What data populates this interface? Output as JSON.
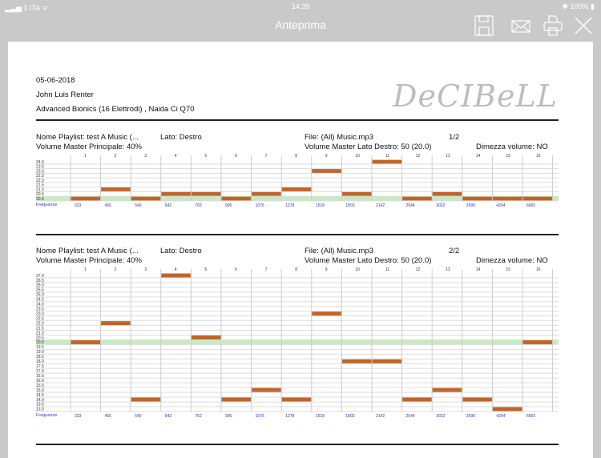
{
  "status_bar": {
    "carrier": "3 ITA",
    "time": "14:39",
    "battery": "100%"
  },
  "nav": {
    "title": "Anteprima",
    "icons": [
      "save-icon",
      "mail-icon",
      "print-icon",
      "close-icon"
    ]
  },
  "header": {
    "date": "05-06-2018",
    "patient": "John Luis Renter",
    "device": "Advanced Bionics (16 Elettrodi) , Naida Ci Q70",
    "logo": "DeCIBeLL"
  },
  "colors": {
    "bar": "#c0652a",
    "baseline_band": "#c6ebbf",
    "freq_text": "#3333cc"
  },
  "chart_data": [
    {
      "type": "bar",
      "info": {
        "playlist": "Nome Playlist: test A Music (...",
        "side": "Lato: Destro",
        "file": "File: (All) Music.mp3",
        "page": "1/2",
        "master": "Volume Master Principale: 40%",
        "side_master": "Volume Master Lato Destro: 50 (20.0)",
        "halve": "Dimezza volume: NO"
      },
      "categories": [
        "1",
        "2",
        "3",
        "4",
        "5",
        "6",
        "7",
        "8",
        "9",
        "10",
        "11",
        "12",
        "13",
        "14",
        "15",
        "16"
      ],
      "freq_label": "Frequenze",
      "frequencies": [
        "333",
        "455",
        "540",
        "642",
        "762",
        "906",
        "1076",
        "1278",
        "1518",
        "1803",
        "2142",
        "2544",
        "3022",
        "3590",
        "4264",
        "6665"
      ],
      "ylim": [
        20.0,
        24.0
      ],
      "baseline": 20.0,
      "values": [
        20.0,
        21.0,
        20.0,
        20.5,
        20.5,
        20.0,
        20.5,
        21.0,
        23.0,
        20.5,
        24.0,
        20.0,
        20.5,
        20.0,
        20.0,
        20.0
      ]
    },
    {
      "type": "bar",
      "info": {
        "playlist": "Nome Playlist: test A Music (...",
        "side": "Lato: Destro",
        "file": "File: (All) Music.mp3",
        "page": "2/2",
        "master": "Volume Master Principale: 40%",
        "side_master": "Volume Master Lato Destro: 50 (20.0)",
        "halve": "Dimezza volume: NO"
      },
      "categories": [
        "1",
        "2",
        "3",
        "4",
        "5",
        "6",
        "7",
        "8",
        "9",
        "10",
        "11",
        "12",
        "13",
        "14",
        "15",
        "16"
      ],
      "freq_label": "Frequenze",
      "frequencies": [
        "333",
        "455",
        "540",
        "642",
        "762",
        "906",
        "1076",
        "1278",
        "1518",
        "1803",
        "2142",
        "2544",
        "3022",
        "3590",
        "4264",
        "6665"
      ],
      "ylim": [
        13.0,
        27.0
      ],
      "baseline": 20.0,
      "values": [
        20.0,
        22.0,
        14.0,
        27.0,
        20.5,
        14.0,
        15.0,
        14.0,
        23.0,
        18.0,
        18.0,
        14.0,
        15.0,
        14.0,
        13.0,
        20.0
      ]
    }
  ]
}
